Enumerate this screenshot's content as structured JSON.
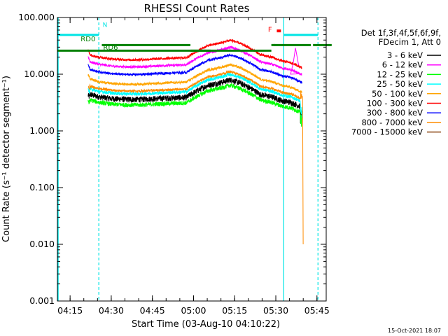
{
  "chart_data": {
    "type": "line",
    "title": "RHESSI Count Rates",
    "xlabel": "Start Time (03-Aug-10 04:10:22)",
    "ylabel": "Count Rate (s⁻¹ detector segment⁻¹)",
    "yscale": "log",
    "ylim": [
      0.001,
      100
    ],
    "xlim_minutes": [
      0,
      98
    ],
    "x_ticks": [
      {
        "minute": 4.63,
        "label": "04:15"
      },
      {
        "minute": 19.63,
        "label": "04:30"
      },
      {
        "minute": 34.63,
        "label": "04:45"
      },
      {
        "minute": 49.63,
        "label": "05:00"
      },
      {
        "minute": 64.63,
        "label": "05:15"
      },
      {
        "minute": 79.63,
        "label": "05:30"
      },
      {
        "minute": 94.63,
        "label": "05:45"
      }
    ],
    "y_ticks": [
      {
        "value": 100,
        "label": "100.000"
      },
      {
        "value": 10,
        "label": "10.000"
      },
      {
        "value": 1,
        "label": "1.000"
      },
      {
        "value": 0.1,
        "label": "0.100"
      },
      {
        "value": 0.01,
        "label": "0.010"
      },
      {
        "value": 0.001,
        "label": "0.001"
      }
    ],
    "legend_header": [
      "Det 1f,3f,4f,5f,6f,9f,",
      "FDecim 1, Att 0"
    ],
    "series": [
      {
        "name": "3 - 6 keV",
        "color": "#000000",
        "scale": 0.2,
        "noise": 0.12,
        "cutoff_val": 1.8,
        "points": []
      },
      {
        "name": "6 - 12 keV",
        "color": "#ff00ff",
        "scale": 0.75,
        "noise": 0.05,
        "points": [
          [
            85,
            10
          ],
          [
            86,
            16
          ],
          [
            86.8,
            29
          ],
          [
            87.4,
            20
          ],
          [
            88,
            14
          ]
        ]
      },
      {
        "name": "12 - 25 keV",
        "color": "#00ff00",
        "scale": 0.16,
        "noise": 0.09,
        "cutoff_val": 1.6,
        "points": []
      },
      {
        "name": "25 - 50 keV",
        "color": "#00ffff",
        "scale": 0.25,
        "noise": 0.07,
        "cutoff_val": 2.2,
        "points": []
      },
      {
        "name": "50 - 100 keV",
        "color": "#ffa500",
        "scale": 0.37,
        "noise": 0.05,
        "points": []
      },
      {
        "name": "100 - 300 keV",
        "color": "#ff0000",
        "scale": 1.0,
        "noise": 0.05,
        "points": []
      },
      {
        "name": "300 - 800 keV",
        "color": "#0000ff",
        "scale": 0.55,
        "noise": 0.05,
        "points": []
      },
      {
        "name": "800 - 7000 keV",
        "color": "#ff8c00",
        "scale": 0.28,
        "noise": 0.05,
        "cutoff_val": 4.0,
        "drop": [
          [
            89.4,
            4
          ],
          [
            89.6,
            0.01
          ]
        ],
        "points": []
      },
      {
        "name": "7000 - 15000 keV",
        "color": "#8b4513",
        "scale": 0.0,
        "noise": 0.0,
        "points": []
      }
    ],
    "base_profile": [
      [
        11.2,
        25
      ],
      [
        12,
        22
      ],
      [
        15,
        20
      ],
      [
        20,
        18.5
      ],
      [
        25,
        18
      ],
      [
        30,
        18
      ],
      [
        40,
        19
      ],
      [
        47,
        19.5
      ],
      [
        50,
        24
      ],
      [
        55,
        32
      ],
      [
        60,
        36
      ],
      [
        63,
        40
      ],
      [
        66,
        36
      ],
      [
        70,
        29
      ],
      [
        74,
        22
      ],
      [
        78,
        20
      ],
      [
        82,
        17
      ],
      [
        85,
        16
      ],
      [
        89.2,
        13
      ]
    ],
    "data_start_minute": 11.2,
    "data_end_minute": 89.2,
    "annotations": {
      "N_label": "N",
      "F_label": "F",
      "RD0_label": "RD0",
      "RD6_label": "RD6",
      "timestamp": "15-Oct-2021 18:07"
    },
    "night_bars_minutes": [
      [
        0,
        15.1
      ],
      [
        82.5,
        95
      ]
    ],
    "saa_bars": [
      [
        -1,
        15.3,
        55.9
      ],
      [
        16.2,
        48.5,
        78
      ],
      [
        79.2,
        92.4
      ],
      [
        93.2,
        100
      ]
    ],
    "saa_level_rate": 30,
    "night_level_rate": 62,
    "vlines_minutes": {
      "cyan_solid": 82.5,
      "cyan_dashed": [
        15.1,
        95
      ]
    }
  }
}
